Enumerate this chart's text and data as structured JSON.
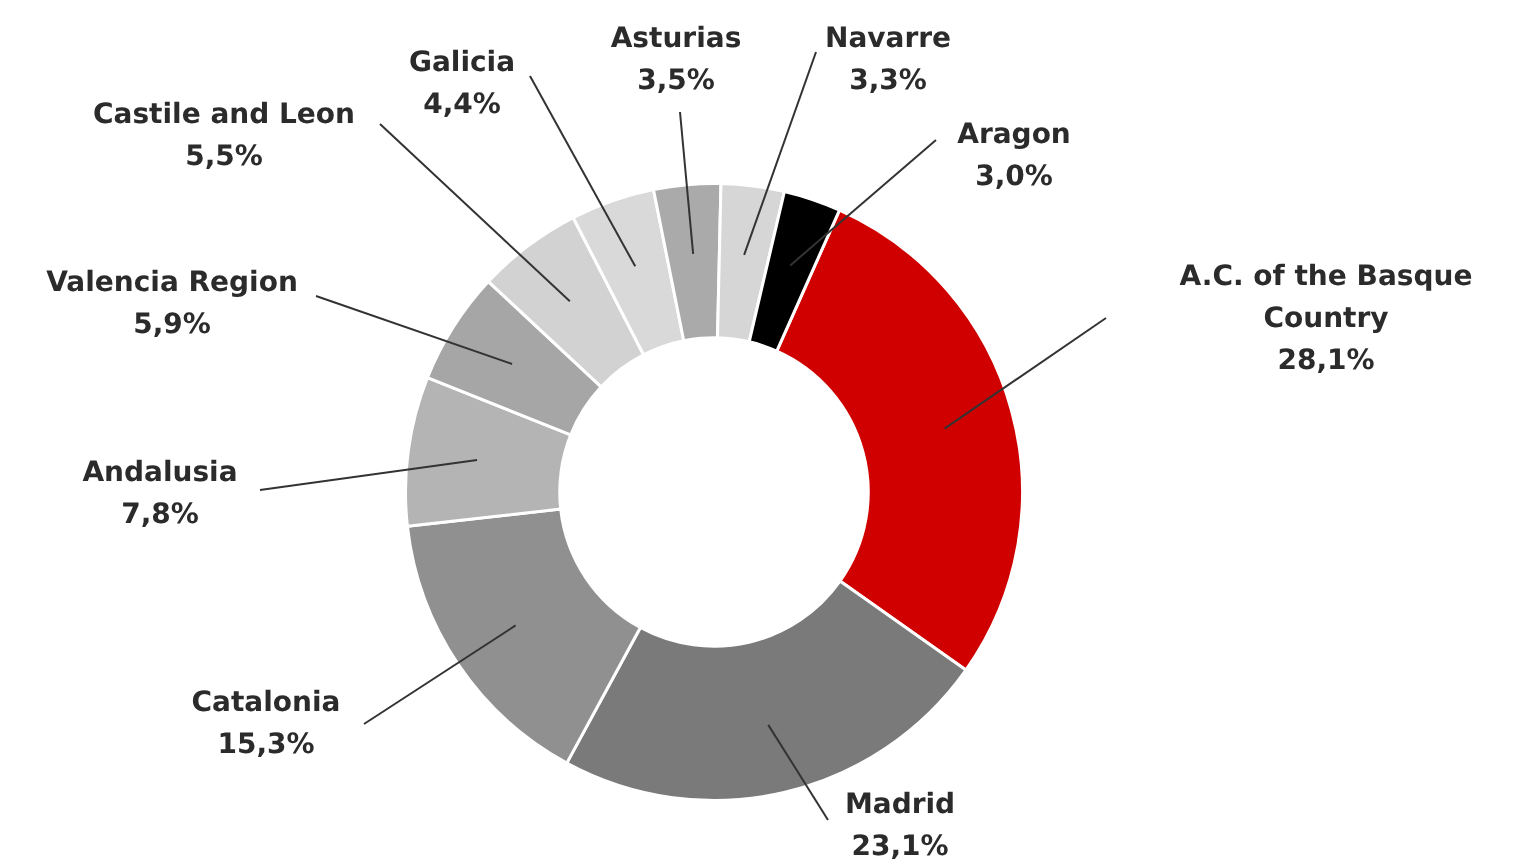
{
  "chart_data": {
    "type": "donut",
    "categories": [
      "A.C. of the Basque Country",
      "Madrid",
      "Catalonia",
      "Andalusia",
      "Valencia Region",
      "Castile and Leon",
      "Galicia",
      "Asturias",
      "Navarre",
      "Aragon"
    ],
    "values": [
      28.1,
      23.1,
      15.3,
      7.8,
      5.9,
      5.5,
      4.4,
      3.5,
      3.3,
      3.0
    ],
    "colors": [
      "#d00000",
      "#7a7a7a",
      "#909090",
      "#b4b4b4",
      "#a6a6a6",
      "#d2d2d2",
      "#d9d9d9",
      "#aaaaaa",
      "#d6d6d6",
      "#000000"
    ],
    "value_labels": [
      "28,1%",
      "23,1%",
      "15,3%",
      "7,8%",
      "5,9%",
      "5,5%",
      "4,4%",
      "3,5%",
      "3,3%",
      "3,0%"
    ]
  }
}
